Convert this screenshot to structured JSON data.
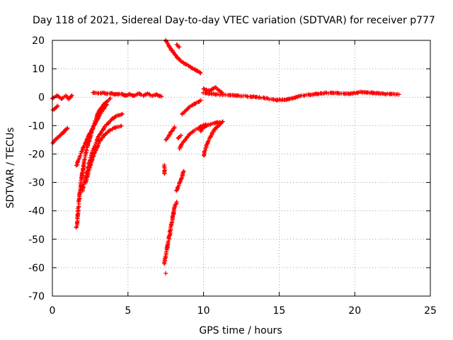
{
  "chart_data": {
    "type": "scatter",
    "title": "Day 118 of 2021, Sidereal Day-to-day VTEC variation (SDTVAR) for receiver p777",
    "xlabel": "GPS time / hours",
    "ylabel": "SDTVAR / TECUs",
    "xlim": [
      0,
      25
    ],
    "ylim": [
      -70,
      20
    ],
    "x_ticks": [
      0,
      5,
      10,
      15,
      20,
      25
    ],
    "y_ticks": [
      -70,
      -60,
      -50,
      -40,
      -30,
      -20,
      -10,
      0,
      10,
      20
    ],
    "grid": true,
    "marker": "+",
    "color": "#ff0000",
    "tracks": [
      {
        "x": [
          0.0,
          0.3,
          0.6,
          0.9,
          1.1,
          1.3
        ],
        "y": [
          -0.5,
          0.5,
          -0.5,
          0.5,
          -0.5,
          0.5
        ]
      },
      {
        "x": [
          0.05,
          0.2,
          0.4
        ],
        "y": [
          -4.5,
          -3.8,
          -3.0
        ]
      },
      {
        "x": [
          0.0,
          0.3,
          0.6,
          0.9,
          1.0
        ],
        "y": [
          -16,
          -14.5,
          -13,
          -11.5,
          -11
        ]
      },
      {
        "x": [
          2.7,
          3.0,
          3.3,
          3.6,
          3.9,
          4.2,
          4.5,
          4.8,
          5.1,
          5.4,
          5.7,
          6.0,
          6.3,
          6.6,
          6.9,
          7.2
        ],
        "y": [
          1.6,
          1.3,
          1.6,
          1.2,
          1.4,
          1.0,
          1.2,
          0.6,
          1.0,
          0.4,
          1.2,
          0.6,
          1.3,
          0.5,
          1.0,
          0.2
        ]
      },
      {
        "x": [
          1.6,
          1.65,
          1.7,
          1.8,
          1.9,
          2.0,
          2.2,
          2.4,
          2.6,
          2.8,
          3.0,
          3.2,
          3.5,
          3.8
        ],
        "y": [
          -46,
          -44,
          -40,
          -35,
          -30,
          -26,
          -20,
          -16,
          -12,
          -9,
          -6,
          -4,
          -2,
          -0.5
        ]
      },
      {
        "x": [
          1.6,
          1.7,
          1.8,
          2.0,
          2.2,
          2.4,
          2.6,
          2.8,
          3.0,
          3.2,
          3.4,
          3.6
        ],
        "y": [
          -24,
          -22.5,
          -21,
          -18.5,
          -16,
          -13.5,
          -11.5,
          -9.5,
          -7.5,
          -5.5,
          -4,
          -2.5
        ]
      },
      {
        "x": [
          2.0,
          2.2,
          2.4,
          2.6,
          2.8,
          3.0,
          3.2,
          3.4,
          3.6,
          3.8,
          4.0,
          4.3,
          4.6
        ],
        "y": [
          -33,
          -28,
          -24,
          -20,
          -17,
          -14.5,
          -12.5,
          -11,
          -9.5,
          -8.5,
          -7.5,
          -6.5,
          -6
        ]
      },
      {
        "x": [
          2.2,
          2.4,
          2.6,
          2.8,
          3.0,
          3.2,
          3.4,
          3.7,
          4.0,
          4.3,
          4.6
        ],
        "y": [
          -30,
          -26,
          -22.5,
          -19.5,
          -17,
          -15,
          -13.5,
          -12,
          -11,
          -10.5,
          -10
        ]
      },
      {
        "x": [
          7.4,
          7.5,
          7.6,
          7.7,
          7.8,
          7.9,
          8.0,
          8.1,
          8.2
        ],
        "y": [
          -58.5,
          -56,
          -53,
          -50,
          -47,
          -44,
          -41,
          -38.5,
          -37
        ]
      },
      {
        "x": [
          8.2,
          8.3,
          8.4,
          8.5,
          8.6,
          8.7
        ],
        "y": [
          -33,
          -32,
          -30.5,
          -29,
          -27.5,
          -26
        ]
      },
      {
        "x": [
          7.4,
          7.42
        ],
        "y": [
          -23.8,
          -27
        ]
      },
      {
        "x": [
          7.5
        ],
        "y": [
          -62
        ]
      },
      {
        "x": [
          7.5,
          7.7,
          7.9,
          8.1,
          8.3,
          8.5,
          8.7,
          9.0,
          9.3,
          9.6,
          9.8
        ],
        "y": [
          20,
          18,
          16.5,
          15,
          13.8,
          12.8,
          12,
          11,
          10,
          9.2,
          8.5
        ]
      },
      {
        "x": [
          8.2,
          8.4
        ],
        "y": [
          18.5,
          17.5
        ]
      },
      {
        "x": [
          7.5,
          7.7,
          7.9,
          8.1
        ],
        "y": [
          -15,
          -13.5,
          -12,
          -10.5
        ]
      },
      {
        "x": [
          8.3,
          8.5
        ],
        "y": [
          -14.5,
          -13.5
        ]
      },
      {
        "x": [
          8.4,
          8.7,
          9.0,
          9.3,
          9.6,
          9.8,
          10.0,
          10.2
        ],
        "y": [
          -18,
          -15.5,
          -13.5,
          -12,
          -11,
          -10.3,
          -9.8,
          -9.5
        ]
      },
      {
        "x": [
          8.6,
          8.8,
          9.0,
          9.2,
          9.4,
          9.6,
          9.8
        ],
        "y": [
          -6,
          -4.8,
          -3.8,
          -3,
          -2.4,
          -1.8,
          -1.2
        ]
      },
      {
        "x": [
          9.8,
          9.9,
          10.0
        ],
        "y": [
          -12,
          -11,
          -10.5
        ]
      },
      {
        "x": [
          10.0,
          10.2,
          10.4,
          10.6,
          10.8,
          11.0,
          11.2
        ],
        "y": [
          -20.5,
          -17,
          -14.5,
          -12.5,
          -11,
          -10,
          -9
        ]
      },
      {
        "x": [
          10.0,
          10.3,
          10.6,
          10.9,
          11.2,
          11.3
        ],
        "y": [
          -10.5,
          -9.8,
          -9.3,
          -9,
          -8.8,
          -8.6
        ]
      },
      {
        "x": [
          10.0,
          10.4,
          10.8,
          11.2
        ],
        "y": [
          3,
          2.2,
          3.5,
          1.5
        ]
      },
      {
        "x": [
          10.0,
          10.8,
          11.6,
          12.4,
          13.2,
          14.0,
          14.8,
          15.6,
          16.4,
          17.2,
          18.0,
          18.8,
          19.6,
          20.4,
          21.2,
          22.0,
          22.9
        ],
        "y": [
          1.5,
          1.0,
          0.8,
          0.5,
          0.2,
          -0.3,
          -1.0,
          -0.8,
          0.5,
          1.0,
          1.5,
          1.5,
          1.2,
          1.8,
          1.5,
          1.2,
          1.0
        ]
      }
    ]
  }
}
